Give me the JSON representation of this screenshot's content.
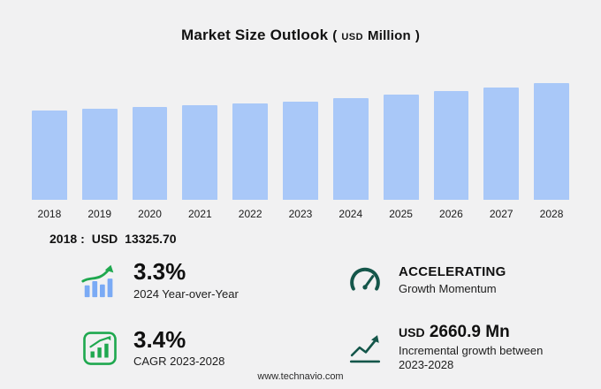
{
  "title": {
    "main": "Market Size Outlook",
    "paren_open": "(",
    "currency": "USD",
    "unit": "Million",
    "paren_close": ")"
  },
  "chart_data": {
    "type": "bar",
    "title": "Market Size Outlook (USD Million)",
    "categories": [
      "2018",
      "2019",
      "2020",
      "2021",
      "2022",
      "2023",
      "2024",
      "2025",
      "2026",
      "2027",
      "2028"
    ],
    "values": [
      13325.7,
      13580,
      13840,
      14100,
      14370,
      14651,
      15134,
      15640,
      16170,
      16730,
      17312
    ],
    "only_labeled_value": "2018 : USD 13325.70",
    "xlabel": "",
    "ylabel": "",
    "ylim": [
      0,
      20000
    ],
    "grid": false,
    "legend": "none",
    "bar_color": "#a9c8f8"
  },
  "base_value": {
    "year": "2018",
    "separator": ":",
    "currency": "USD",
    "value": "13325.70"
  },
  "stats": {
    "yoy": {
      "icon": "bar-chart-up-arrow-icon",
      "value": "3.3%",
      "label": "2024 Year-over-Year"
    },
    "momentum": {
      "icon": "gauge-icon",
      "value": "ACCELERATING",
      "label": "Growth Momentum"
    },
    "cagr": {
      "icon": "framed-bar-chart-icon",
      "value": "3.4%",
      "label": "CAGR 2023-2028"
    },
    "incremental": {
      "icon": "line-growth-icon",
      "currency": "USD",
      "value": "2660.9 Mn",
      "label": "Incremental growth between 2023-2028"
    }
  },
  "footer": {
    "url": "www.technavio.com"
  },
  "colors": {
    "bar": "#a9c8f8",
    "green": "#1fa84f",
    "dark_green": "#14564a",
    "background": "#f1f1f2"
  }
}
